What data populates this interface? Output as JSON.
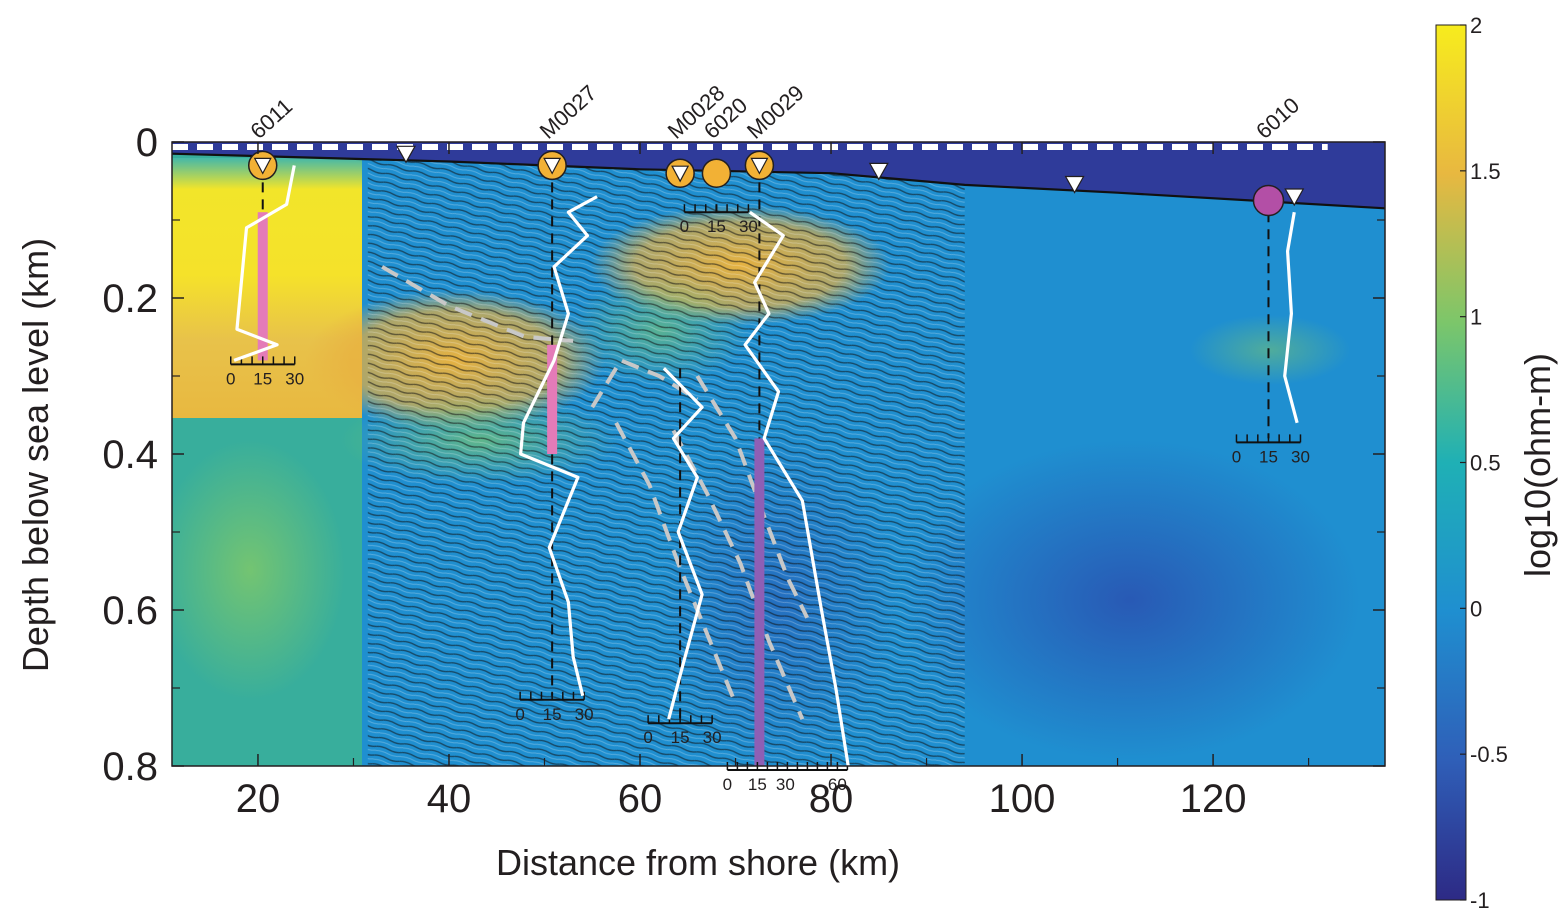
{
  "chart_data": {
    "type": "heatmap",
    "title": "",
    "xlabel": "Distance from shore (km)",
    "ylabel": "Depth below sea level (km)",
    "xlim": [
      11,
      138
    ],
    "ylim": [
      0,
      0.8
    ],
    "x_ticks": [
      "20",
      "40",
      "60",
      "80",
      "100",
      "120"
    ],
    "x_tick_values": [
      20,
      40,
      60,
      80,
      100,
      120
    ],
    "y_ticks": [
      "0",
      "0.2",
      "0.4",
      "0.6",
      "0.8"
    ],
    "y_tick_values": [
      0,
      0.2,
      0.4,
      0.6,
      0.8
    ],
    "y_inverted": true,
    "colorbar": {
      "label": "log10(ohm-m)",
      "range": [
        -1,
        2
      ],
      "ticks": [
        "2",
        "1.5",
        "1",
        "0.5",
        "0",
        "-0.5",
        "-1"
      ],
      "tick_values": [
        2,
        1.5,
        1,
        0.5,
        0,
        -0.5,
        -1
      ],
      "colormap": [
        "#3b2f8c",
        "#2f5fb8",
        "#1f8fc9",
        "#27b5a8",
        "#7cc66a",
        "#e8b840",
        "#f7ec1d"
      ]
    },
    "seismic_overlay_x_range": [
      31.5,
      94
    ],
    "seafloor_depth_km": [
      {
        "x": 11,
        "y": 0.015
      },
      {
        "x": 40,
        "y": 0.025
      },
      {
        "x": 60,
        "y": 0.035
      },
      {
        "x": 80,
        "y": 0.04
      },
      {
        "x": 94,
        "y": 0.055
      },
      {
        "x": 110,
        "y": 0.065
      },
      {
        "x": 138,
        "y": 0.085
      }
    ],
    "sea_level_marker": "dashed white line",
    "wells": [
      {
        "name": "6011",
        "x": 20.5,
        "symbol": "orange-circle-triangle",
        "depth_range": [
          0.03,
          0.28
        ],
        "log_scale_labels": [
          "0",
          "15",
          "30"
        ],
        "highlight_color": "#e47bb8",
        "highlight_range": [
          0.09,
          0.28
        ]
      },
      {
        "name": "M0027",
        "x": 50.8,
        "symbol": "orange-circle-triangle",
        "depth_range": [
          0.03,
          0.71
        ],
        "log_scale_labels": [
          "0",
          "15",
          "30"
        ],
        "highlight_color": "#e47bb8",
        "highlight_range": [
          0.26,
          0.4
        ]
      },
      {
        "name": "M0028",
        "x": 64.2,
        "symbol": "orange-circle-triangle",
        "depth_range": [
          0.29,
          0.74
        ],
        "log_scale_labels": [
          "0",
          "15",
          "30"
        ]
      },
      {
        "name": "6020",
        "x": 68.0,
        "symbol": "orange-circle",
        "depth_range": [
          0.08,
          0.09
        ],
        "log_scale_labels": [
          "0",
          "15",
          "30"
        ]
      },
      {
        "name": "M0029",
        "x": 72.5,
        "symbol": "orange-circle-triangle",
        "depth_range": [
          0.03,
          0.8
        ],
        "log_scale_labels": [
          "0",
          "15",
          "30",
          "60"
        ],
        "highlight_color": "#8e5fb5",
        "highlight_range": [
          0.38,
          0.8
        ]
      },
      {
        "name": "6010",
        "x": 125.8,
        "symbol": "magenta-circle",
        "depth_range": [
          0.09,
          0.38
        ],
        "log_scale_labels": [
          "0",
          "15",
          "30"
        ]
      }
    ],
    "receiver_triangles_x": [
      35.5,
      85.0,
      105.5,
      128.5
    ],
    "resistivity_logs": [
      {
        "well": "M0027",
        "points": [
          {
            "x": 55.5,
            "y": 0.07
          },
          {
            "x": 52.5,
            "y": 0.09
          },
          {
            "x": 54.5,
            "y": 0.12
          },
          {
            "x": 51.0,
            "y": 0.16
          },
          {
            "x": 52.5,
            "y": 0.22
          },
          {
            "x": 51.0,
            "y": 0.28
          },
          {
            "x": 47.8,
            "y": 0.36
          },
          {
            "x": 47.5,
            "y": 0.4
          },
          {
            "x": 53.5,
            "y": 0.43
          },
          {
            "x": 50.5,
            "y": 0.52
          },
          {
            "x": 52.5,
            "y": 0.59
          },
          {
            "x": 53.0,
            "y": 0.66
          },
          {
            "x": 54.0,
            "y": 0.71
          }
        ]
      },
      {
        "well": "6011",
        "points": [
          {
            "x": 23.8,
            "y": 0.03
          },
          {
            "x": 23.0,
            "y": 0.08
          },
          {
            "x": 18.8,
            "y": 0.11
          },
          {
            "x": 17.8,
            "y": 0.24
          },
          {
            "x": 22.0,
            "y": 0.26
          },
          {
            "x": 17.5,
            "y": 0.28
          }
        ]
      },
      {
        "well": "M0028",
        "points": [
          {
            "x": 62.5,
            "y": 0.29
          },
          {
            "x": 66.5,
            "y": 0.34
          },
          {
            "x": 63.5,
            "y": 0.38
          },
          {
            "x": 66.0,
            "y": 0.43
          },
          {
            "x": 64.0,
            "y": 0.5
          },
          {
            "x": 66.5,
            "y": 0.58
          },
          {
            "x": 64.5,
            "y": 0.67
          },
          {
            "x": 63.0,
            "y": 0.74
          }
        ]
      },
      {
        "well": "M0029",
        "points": [
          {
            "x": 71.5,
            "y": 0.09
          },
          {
            "x": 75.0,
            "y": 0.12
          },
          {
            "x": 72.0,
            "y": 0.18
          },
          {
            "x": 73.5,
            "y": 0.22
          },
          {
            "x": 71.0,
            "y": 0.26
          },
          {
            "x": 74.5,
            "y": 0.32
          },
          {
            "x": 73.0,
            "y": 0.38
          },
          {
            "x": 77.0,
            "y": 0.46
          },
          {
            "x": 79.0,
            "y": 0.6
          },
          {
            "x": 80.5,
            "y": 0.7
          },
          {
            "x": 81.8,
            "y": 0.8
          }
        ]
      },
      {
        "well": "6010",
        "points": [
          {
            "x": 128.5,
            "y": 0.09
          },
          {
            "x": 127.8,
            "y": 0.14
          },
          {
            "x": 128.2,
            "y": 0.22
          },
          {
            "x": 127.5,
            "y": 0.3
          },
          {
            "x": 128.8,
            "y": 0.36
          }
        ]
      }
    ],
    "dashed_interpretation_lines": [
      {
        "points": [
          {
            "x": 33,
            "y": 0.16
          },
          {
            "x": 40,
            "y": 0.21
          },
          {
            "x": 48,
            "y": 0.25
          },
          {
            "x": 53,
            "y": 0.255
          }
        ]
      },
      {
        "points": [
          {
            "x": 55,
            "y": 0.34
          },
          {
            "x": 58,
            "y": 0.28
          },
          {
            "x": 62,
            "y": 0.3
          },
          {
            "x": 66,
            "y": 0.33
          }
        ]
      },
      {
        "points": [
          {
            "x": 57.5,
            "y": 0.36
          },
          {
            "x": 61,
            "y": 0.44
          },
          {
            "x": 64,
            "y": 0.54
          },
          {
            "x": 67,
            "y": 0.63
          },
          {
            "x": 70,
            "y": 0.72
          }
        ]
      },
      {
        "points": [
          {
            "x": 63.5,
            "y": 0.37
          },
          {
            "x": 67,
            "y": 0.45
          },
          {
            "x": 70.5,
            "y": 0.54
          },
          {
            "x": 73.5,
            "y": 0.64
          },
          {
            "x": 77,
            "y": 0.74
          }
        ]
      },
      {
        "points": [
          {
            "x": 66,
            "y": 0.3
          },
          {
            "x": 70,
            "y": 0.38
          },
          {
            "x": 73,
            "y": 0.48
          },
          {
            "x": 75.5,
            "y": 0.56
          },
          {
            "x": 77.5,
            "y": 0.61
          }
        ]
      }
    ]
  }
}
